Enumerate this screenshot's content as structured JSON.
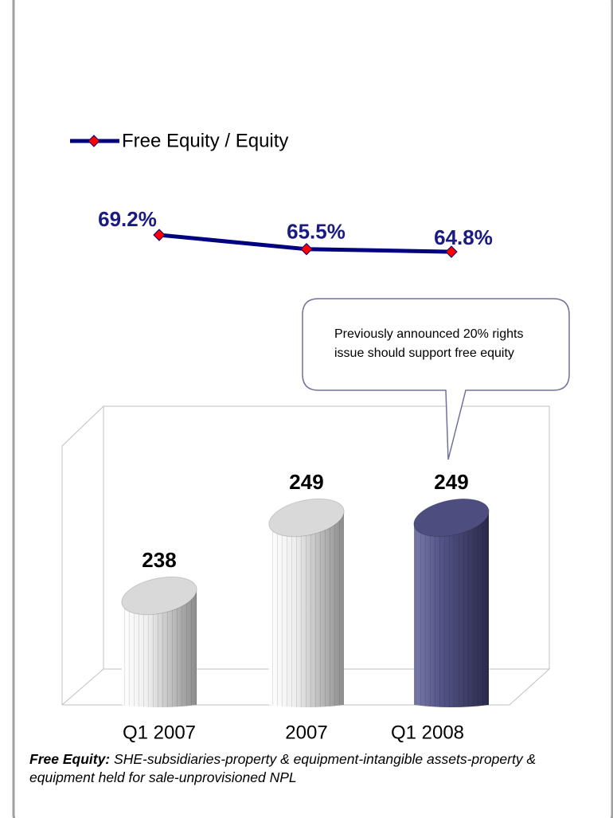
{
  "chart_data": [
    {
      "type": "line",
      "categories": [
        null,
        null,
        null
      ],
      "series": [
        {
          "name": "Free Equity / Equity",
          "color": "#000080",
          "marker_color": "#ff0000",
          "values": [
            69.2,
            65.5,
            64.8
          ]
        }
      ],
      "value_labels": [
        "69.2%",
        "65.5%",
        "64.8%"
      ],
      "legend": "top-left"
    },
    {
      "type": "bar",
      "categories": [
        "Q1 2007",
        "2007",
        "Q1 2008"
      ],
      "values": [
        238,
        249,
        249
      ],
      "colors": [
        "#d9d9d9",
        "#d9d9d9",
        "#4d4d7f"
      ],
      "annotation": "Previously announced 20% rights issue should support free equity"
    }
  ],
  "footnote": {
    "term": "Free Equity:",
    "text": "SHE-subsidiaries-property & equipment-intangible assets-property & equipment held for sale-unprovisioned NPL"
  }
}
